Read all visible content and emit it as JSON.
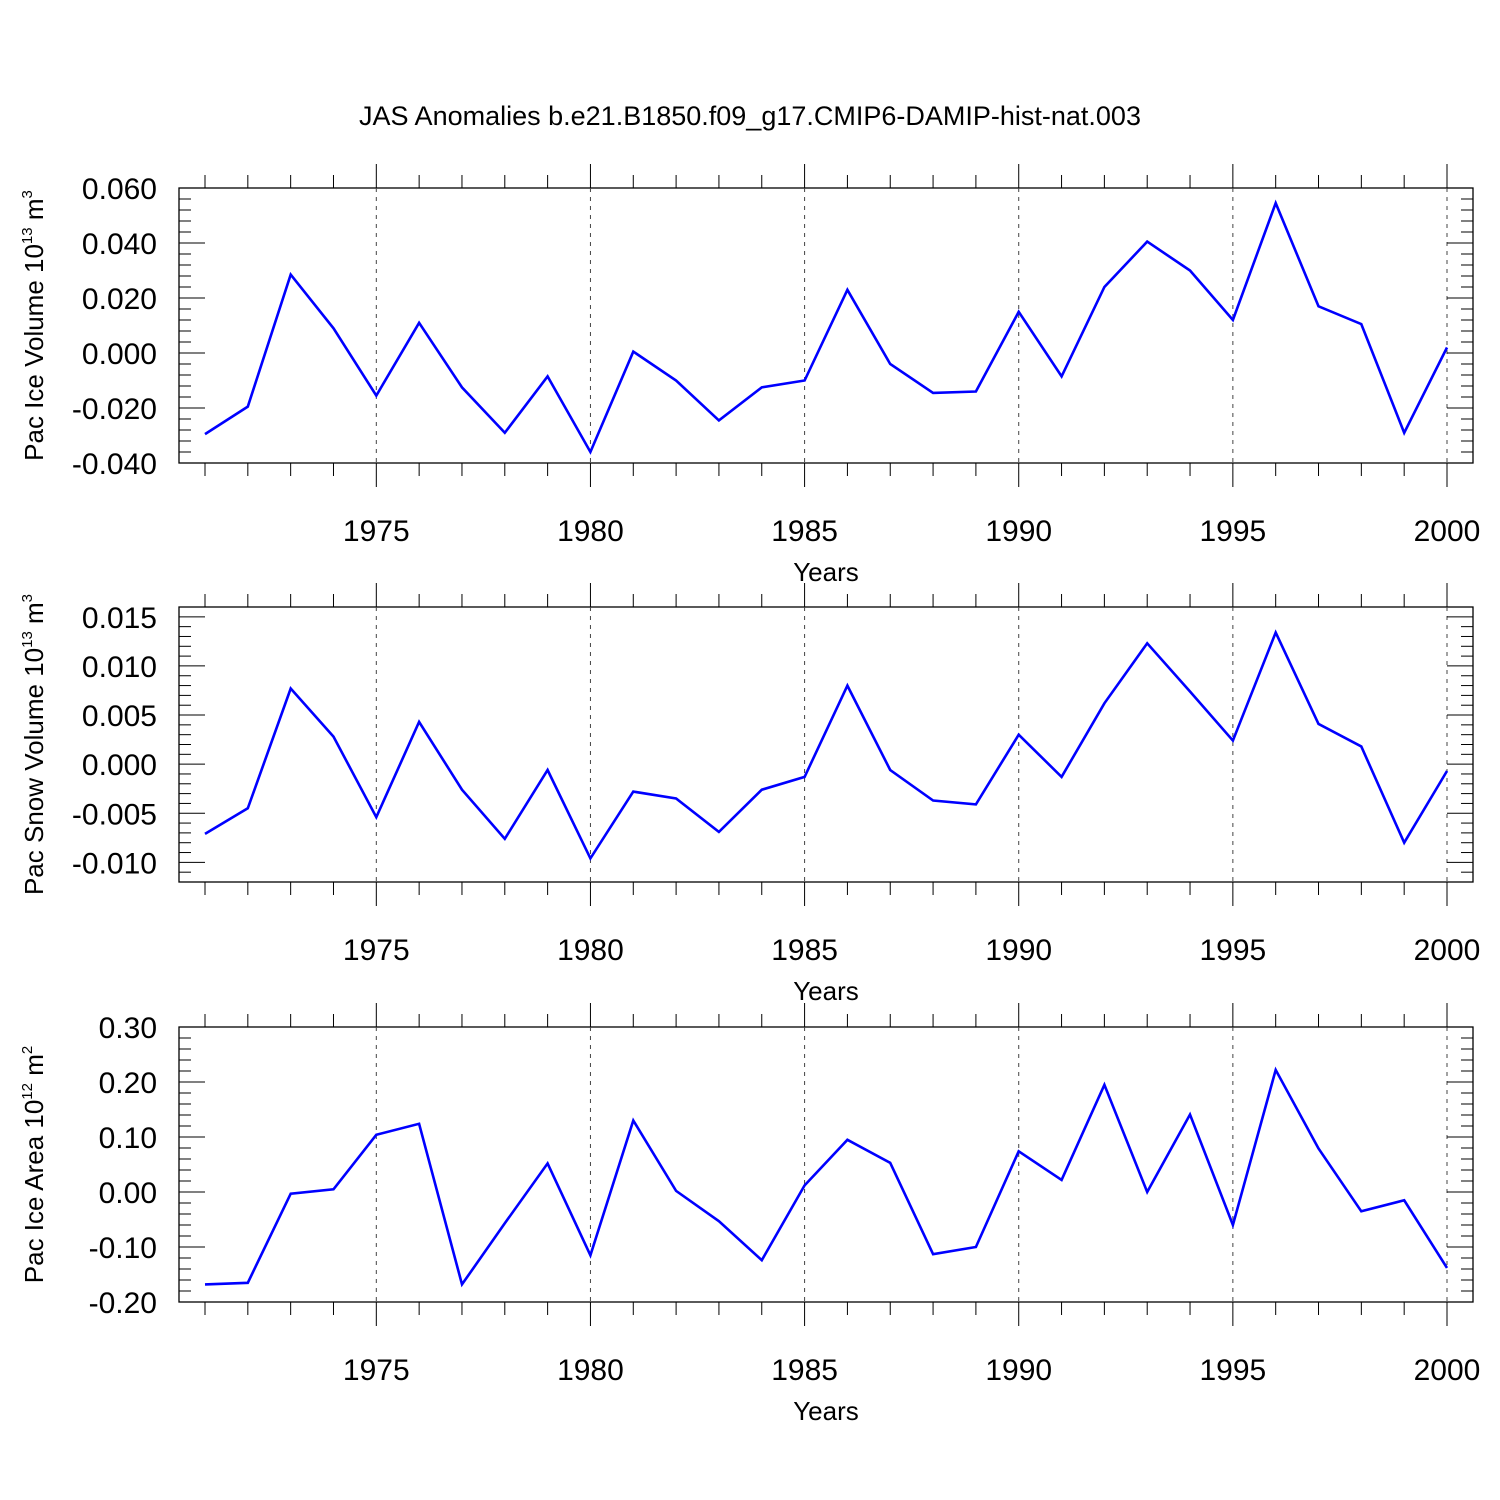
{
  "title": "JAS Anomalies b.e21.B1850.f09_g17.CMIP6-DAMIP-hist-nat.003",
  "chart_data": [
    {
      "type": "line",
      "xlabel": "Years",
      "ylabel": {
        "text": "Pac Ice Volume 10",
        "exponent": "13",
        "unit": " m",
        "unit_exponent": "3"
      },
      "xlim": [
        1971,
        2000
      ],
      "ylim": [
        -0.04,
        0.06
      ],
      "yticks": [
        -0.04,
        -0.02,
        0.0,
        0.02,
        0.04,
        0.06
      ],
      "ytick_labels": [
        "-0.040",
        "-0.020",
        "0.000",
        "0.020",
        "0.040",
        "0.060"
      ],
      "xticks": [
        1975,
        1980,
        1985,
        1990,
        1995,
        2000
      ],
      "xtick_labels": [
        "1975",
        "1980",
        "1985",
        "1990",
        "1995",
        "2000"
      ],
      "grid": "vertical dashed at labeled years",
      "line_color": "#0000ff",
      "x": [
        1971,
        1972,
        1973,
        1974,
        1975,
        1976,
        1977,
        1978,
        1979,
        1980,
        1981,
        1982,
        1983,
        1984,
        1985,
        1986,
        1987,
        1988,
        1989,
        1990,
        1991,
        1992,
        1993,
        1994,
        1995,
        1996,
        1997,
        1998,
        1999,
        2000
      ],
      "values": [
        -0.0295,
        -0.0195,
        0.0285,
        0.009,
        -0.0155,
        0.011,
        -0.0125,
        -0.029,
        -0.0085,
        -0.036,
        0.0005,
        -0.01,
        -0.0245,
        -0.0125,
        -0.01,
        0.023,
        -0.004,
        -0.0145,
        -0.014,
        0.015,
        -0.0085,
        0.024,
        0.0405,
        0.03,
        0.012,
        0.0545,
        0.017,
        0.0105,
        -0.029,
        0.002
      ]
    },
    {
      "type": "line",
      "xlabel": "Years",
      "ylabel": {
        "text": "Pac Snow Volume 10",
        "exponent": "13",
        "unit": " m",
        "unit_exponent": "3"
      },
      "xlim": [
        1971,
        2000
      ],
      "ylim": [
        -0.012,
        0.016
      ],
      "yticks": [
        -0.01,
        -0.005,
        0.0,
        0.005,
        0.01,
        0.015
      ],
      "ytick_labels": [
        "-0.010",
        "-0.005",
        "0.000",
        "0.005",
        "0.010",
        "0.015"
      ],
      "xticks": [
        1975,
        1980,
        1985,
        1990,
        1995,
        2000
      ],
      "xtick_labels": [
        "1975",
        "1980",
        "1985",
        "1990",
        "1995",
        "2000"
      ],
      "grid": "vertical dashed at labeled years",
      "line_color": "#0000ff",
      "x": [
        1971,
        1972,
        1973,
        1974,
        1975,
        1976,
        1977,
        1978,
        1979,
        1980,
        1981,
        1982,
        1983,
        1984,
        1985,
        1986,
        1987,
        1988,
        1989,
        1990,
        1991,
        1992,
        1993,
        1994,
        1995,
        1996,
        1997,
        1998,
        1999,
        2000
      ],
      "values": [
        -0.0071,
        -0.0045,
        0.0077,
        0.0028,
        -0.0054,
        0.0043,
        -0.0026,
        -0.0076,
        -0.0006,
        -0.0096,
        -0.0028,
        -0.0035,
        -0.0069,
        -0.0026,
        -0.0013,
        0.008,
        -0.0006,
        -0.0037,
        -0.0041,
        0.003,
        -0.0013,
        0.0062,
        0.0123,
        0.0074,
        0.0024,
        0.0134,
        0.0041,
        0.0018,
        -0.008,
        -0.0007
      ]
    },
    {
      "type": "line",
      "xlabel": "Years",
      "ylabel": {
        "text": "Pac Ice Area 10",
        "exponent": "12",
        "unit": " m",
        "unit_exponent": "2"
      },
      "xlim": [
        1971,
        2000
      ],
      "ylim": [
        -0.2,
        0.3
      ],
      "yticks": [
        -0.2,
        -0.1,
        0.0,
        0.1,
        0.2,
        0.3
      ],
      "ytick_labels": [
        "-0.20",
        "-0.10",
        "0.00",
        "0.10",
        "0.20",
        "0.30"
      ],
      "xticks": [
        1975,
        1980,
        1985,
        1990,
        1995,
        2000
      ],
      "xtick_labels": [
        "1975",
        "1980",
        "1985",
        "1990",
        "1995",
        "2000"
      ],
      "grid": "vertical dashed at labeled years",
      "line_color": "#0000ff",
      "x": [
        1971,
        1972,
        1973,
        1974,
        1975,
        1976,
        1977,
        1978,
        1979,
        1980,
        1981,
        1982,
        1983,
        1984,
        1985,
        1986,
        1987,
        1988,
        1989,
        1990,
        1991,
        1992,
        1993,
        1994,
        1995,
        1996,
        1997,
        1998,
        1999,
        2000
      ],
      "values": [
        -0.168,
        -0.165,
        -0.003,
        0.005,
        0.104,
        0.124,
        -0.168,
        -0.057,
        0.052,
        -0.115,
        0.13,
        0.002,
        -0.053,
        -0.124,
        0.012,
        0.095,
        0.053,
        -0.113,
        -0.1,
        0.074,
        0.022,
        0.195,
        0.0,
        0.141,
        -0.06,
        0.222,
        0.079,
        -0.035,
        -0.015,
        -0.138
      ]
    }
  ]
}
